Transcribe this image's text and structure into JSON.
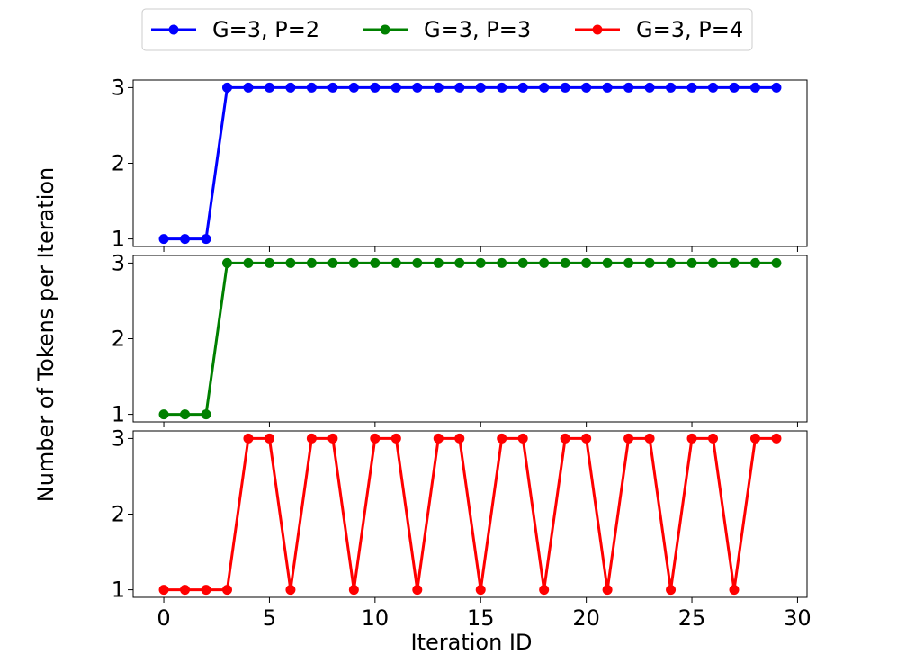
{
  "chart_data": {
    "type": "line",
    "xlabel": "Iteration ID",
    "ylabel": "Number of Tokens per Iteration",
    "xlim": [
      -1.45,
      30.45
    ],
    "ylim": [
      0.9,
      3.1
    ],
    "xticks": [
      0,
      5,
      10,
      15,
      20,
      25,
      30
    ],
    "yticks": [
      1,
      2,
      3
    ],
    "legend_position": "top-center",
    "x": [
      0,
      1,
      2,
      3,
      4,
      5,
      6,
      7,
      8,
      9,
      10,
      11,
      12,
      13,
      14,
      15,
      16,
      17,
      18,
      19,
      20,
      21,
      22,
      23,
      24,
      25,
      26,
      27,
      28,
      29
    ],
    "series": [
      {
        "name": "G=3, P=2",
        "color": "#0000ff",
        "values": [
          1,
          1,
          1,
          3,
          3,
          3,
          3,
          3,
          3,
          3,
          3,
          3,
          3,
          3,
          3,
          3,
          3,
          3,
          3,
          3,
          3,
          3,
          3,
          3,
          3,
          3,
          3,
          3,
          3,
          3
        ]
      },
      {
        "name": "G=3, P=3",
        "color": "#008000",
        "values": [
          1,
          1,
          1,
          3,
          3,
          3,
          3,
          3,
          3,
          3,
          3,
          3,
          3,
          3,
          3,
          3,
          3,
          3,
          3,
          3,
          3,
          3,
          3,
          3,
          3,
          3,
          3,
          3,
          3,
          3
        ]
      },
      {
        "name": "G=3, P=4",
        "color": "#ff0000",
        "values": [
          1,
          1,
          1,
          1,
          3,
          3,
          1,
          3,
          3,
          1,
          3,
          3,
          1,
          3,
          3,
          1,
          3,
          3,
          1,
          3,
          3,
          1,
          3,
          3,
          1,
          3,
          3,
          1,
          3,
          3
        ]
      }
    ]
  }
}
